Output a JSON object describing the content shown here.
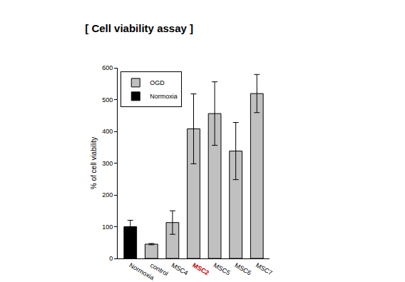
{
  "chart_data": {
    "type": "bar",
    "title": "[ Cell viability assay ]",
    "y_label": "% of cell viability",
    "categories": [
      "Normoxia",
      "control",
      "MSC4",
      "MSC2",
      "MSC5",
      "MSC6",
      "MSC7"
    ],
    "series": [
      {
        "name": "OGD",
        "color": "#c0c0c0",
        "values": [
          null,
          45,
          113,
          408,
          456,
          338,
          519
        ],
        "errors": [
          null,
          2,
          37,
          110,
          100,
          90,
          60
        ]
      },
      {
        "name": "Normoxia",
        "color": "#000000",
        "values": [
          100,
          null,
          null,
          null,
          null,
          null,
          null
        ],
        "errors": [
          20,
          null,
          null,
          null,
          null,
          null,
          null
        ]
      }
    ],
    "ylim": [
      0,
      600
    ],
    "yticks": [
      0,
      100,
      200,
      300,
      400,
      500,
      600
    ],
    "grid": false,
    "legend": "upper left"
  }
}
